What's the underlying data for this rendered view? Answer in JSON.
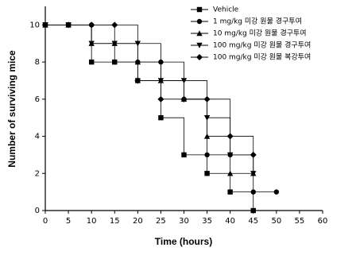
{
  "chart_data": {
    "type": "step",
    "x_label": "Time (hours)",
    "y_label": "Number of surviving mice",
    "x": [
      0,
      5,
      10,
      15,
      20,
      25,
      30,
      35,
      40,
      45,
      50
    ],
    "series": [
      {
        "name": "Vehicle",
        "color": "#000000",
        "marker": "square",
        "values": [
          10,
          10,
          8,
          8,
          7,
          5,
          3,
          2,
          1,
          0,
          null
        ]
      },
      {
        "name": "1 mg/kg 미강 원물 경구투여",
        "color": "#000000",
        "marker": "circle",
        "values": [
          10,
          10,
          10,
          8,
          8,
          8,
          6,
          3,
          3,
          1,
          1
        ]
      },
      {
        "name": "10 mg/kg 미강 원물 경구투여",
        "color": "#000000",
        "marker": "triangle-up",
        "values": [
          10,
          10,
          9,
          9,
          8,
          7,
          6,
          4,
          2,
          2,
          null
        ]
      },
      {
        "name": "100 mg/kg 미강 원물 경구투여",
        "color": "#000000",
        "marker": "triangle-down",
        "values": [
          10,
          10,
          9,
          9,
          9,
          7,
          7,
          5,
          3,
          2,
          null
        ]
      },
      {
        "name": "100 mg/kg 미강 원물 복강투여",
        "color": "#000000",
        "marker": "diamond",
        "values": [
          10,
          10,
          10,
          10,
          7,
          6,
          6,
          6,
          4,
          3,
          null
        ]
      }
    ],
    "xlim": [
      0,
      60
    ],
    "xticks": [
      0,
      5,
      10,
      15,
      20,
      25,
      30,
      35,
      40,
      45,
      50,
      55,
      60
    ],
    "ylim": [
      0,
      11
    ],
    "yticks": [
      0,
      2,
      4,
      6,
      8,
      10
    ],
    "grid": false
  }
}
